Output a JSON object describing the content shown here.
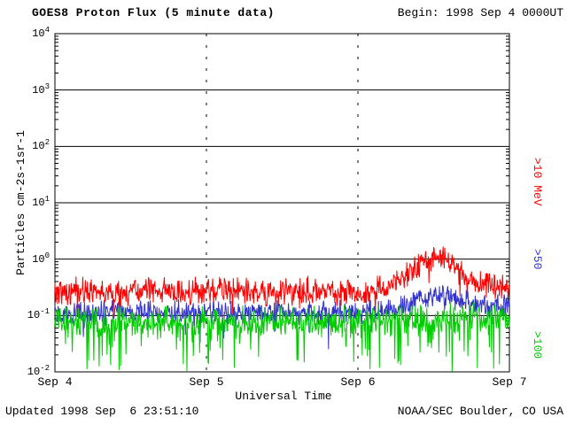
{
  "header": {
    "title": "GOES8 Proton Flux (5 minute data)",
    "begin_label": "Begin: 1998 Sep 4 0000UT"
  },
  "footer": {
    "updated": "Updated 1998 Sep  6 23:51:10",
    "credit": "NOAA/SEC Boulder, CO USA"
  },
  "chart_data": {
    "type": "line",
    "title": "GOES8 Proton Flux (5 minute data)",
    "subtitle": "Begin: 1998 Sep 4 0000UT",
    "xlabel": "Universal Time",
    "ylabel": "Particles cm-2s-1sr-1",
    "x_ticks": [
      "Sep 4",
      "Sep 5",
      "Sep 6",
      "Sep 7"
    ],
    "x_tick_days": [
      0,
      1,
      2,
      3
    ],
    "x_range_days": [
      0,
      3
    ],
    "y_scale": "log10",
    "y_log_range": [
      -2,
      4
    ],
    "y_tick_exponents": [
      4,
      3,
      2,
      1,
      0,
      -1,
      -2
    ],
    "grid": "horizontal solid per decade, dashed vertical at day boundaries",
    "legend_position": "right-rotated",
    "points_per_day": 288,
    "series": [
      {
        "name": ">10 MeV",
        "color": "#ff0000",
        "baseline_log10": [
          [
            0.0,
            -0.6
          ],
          [
            0.2,
            -0.55
          ],
          [
            0.4,
            -0.62
          ],
          [
            0.6,
            -0.55
          ],
          [
            0.8,
            -0.6
          ],
          [
            1.0,
            -0.58
          ],
          [
            1.2,
            -0.55
          ],
          [
            1.4,
            -0.6
          ],
          [
            1.6,
            -0.55
          ],
          [
            1.8,
            -0.58
          ],
          [
            2.0,
            -0.6
          ],
          [
            2.1,
            -0.55
          ],
          [
            2.2,
            -0.5
          ],
          [
            2.3,
            -0.33
          ],
          [
            2.4,
            -0.1
          ],
          [
            2.5,
            0.02
          ],
          [
            2.55,
            0.05
          ],
          [
            2.6,
            -0.05
          ],
          [
            2.7,
            -0.3
          ],
          [
            2.8,
            -0.44
          ],
          [
            2.85,
            -0.38
          ],
          [
            2.9,
            -0.46
          ],
          [
            3.0,
            -0.5
          ]
        ],
        "noise_log10": 0.14,
        "spike_down_prob": 0.03,
        "spike_down_max": 0.35
      },
      {
        "name": ">50",
        "color": "#3333cc",
        "baseline_log10": [
          [
            0.0,
            -0.95
          ],
          [
            0.5,
            -0.92
          ],
          [
            1.0,
            -0.95
          ],
          [
            1.5,
            -0.93
          ],
          [
            2.0,
            -0.95
          ],
          [
            2.3,
            -0.85
          ],
          [
            2.45,
            -0.66
          ],
          [
            2.55,
            -0.6
          ],
          [
            2.7,
            -0.76
          ],
          [
            2.9,
            -0.85
          ],
          [
            3.0,
            -0.8
          ]
        ],
        "noise_log10": 0.12,
        "spike_down_prob": 0.05,
        "spike_down_max": 0.45
      },
      {
        "name": ">100",
        "color": "#00cc00",
        "baseline_log10": [
          [
            0.0,
            -1.12
          ],
          [
            0.5,
            -1.1
          ],
          [
            1.0,
            -1.12
          ],
          [
            1.5,
            -1.1
          ],
          [
            2.0,
            -1.12
          ],
          [
            2.5,
            -1.05
          ],
          [
            2.8,
            -1.0
          ],
          [
            3.0,
            -1.05
          ]
        ],
        "noise_log10": 0.16,
        "spike_down_prob": 0.12,
        "spike_down_max": 0.85
      }
    ]
  }
}
